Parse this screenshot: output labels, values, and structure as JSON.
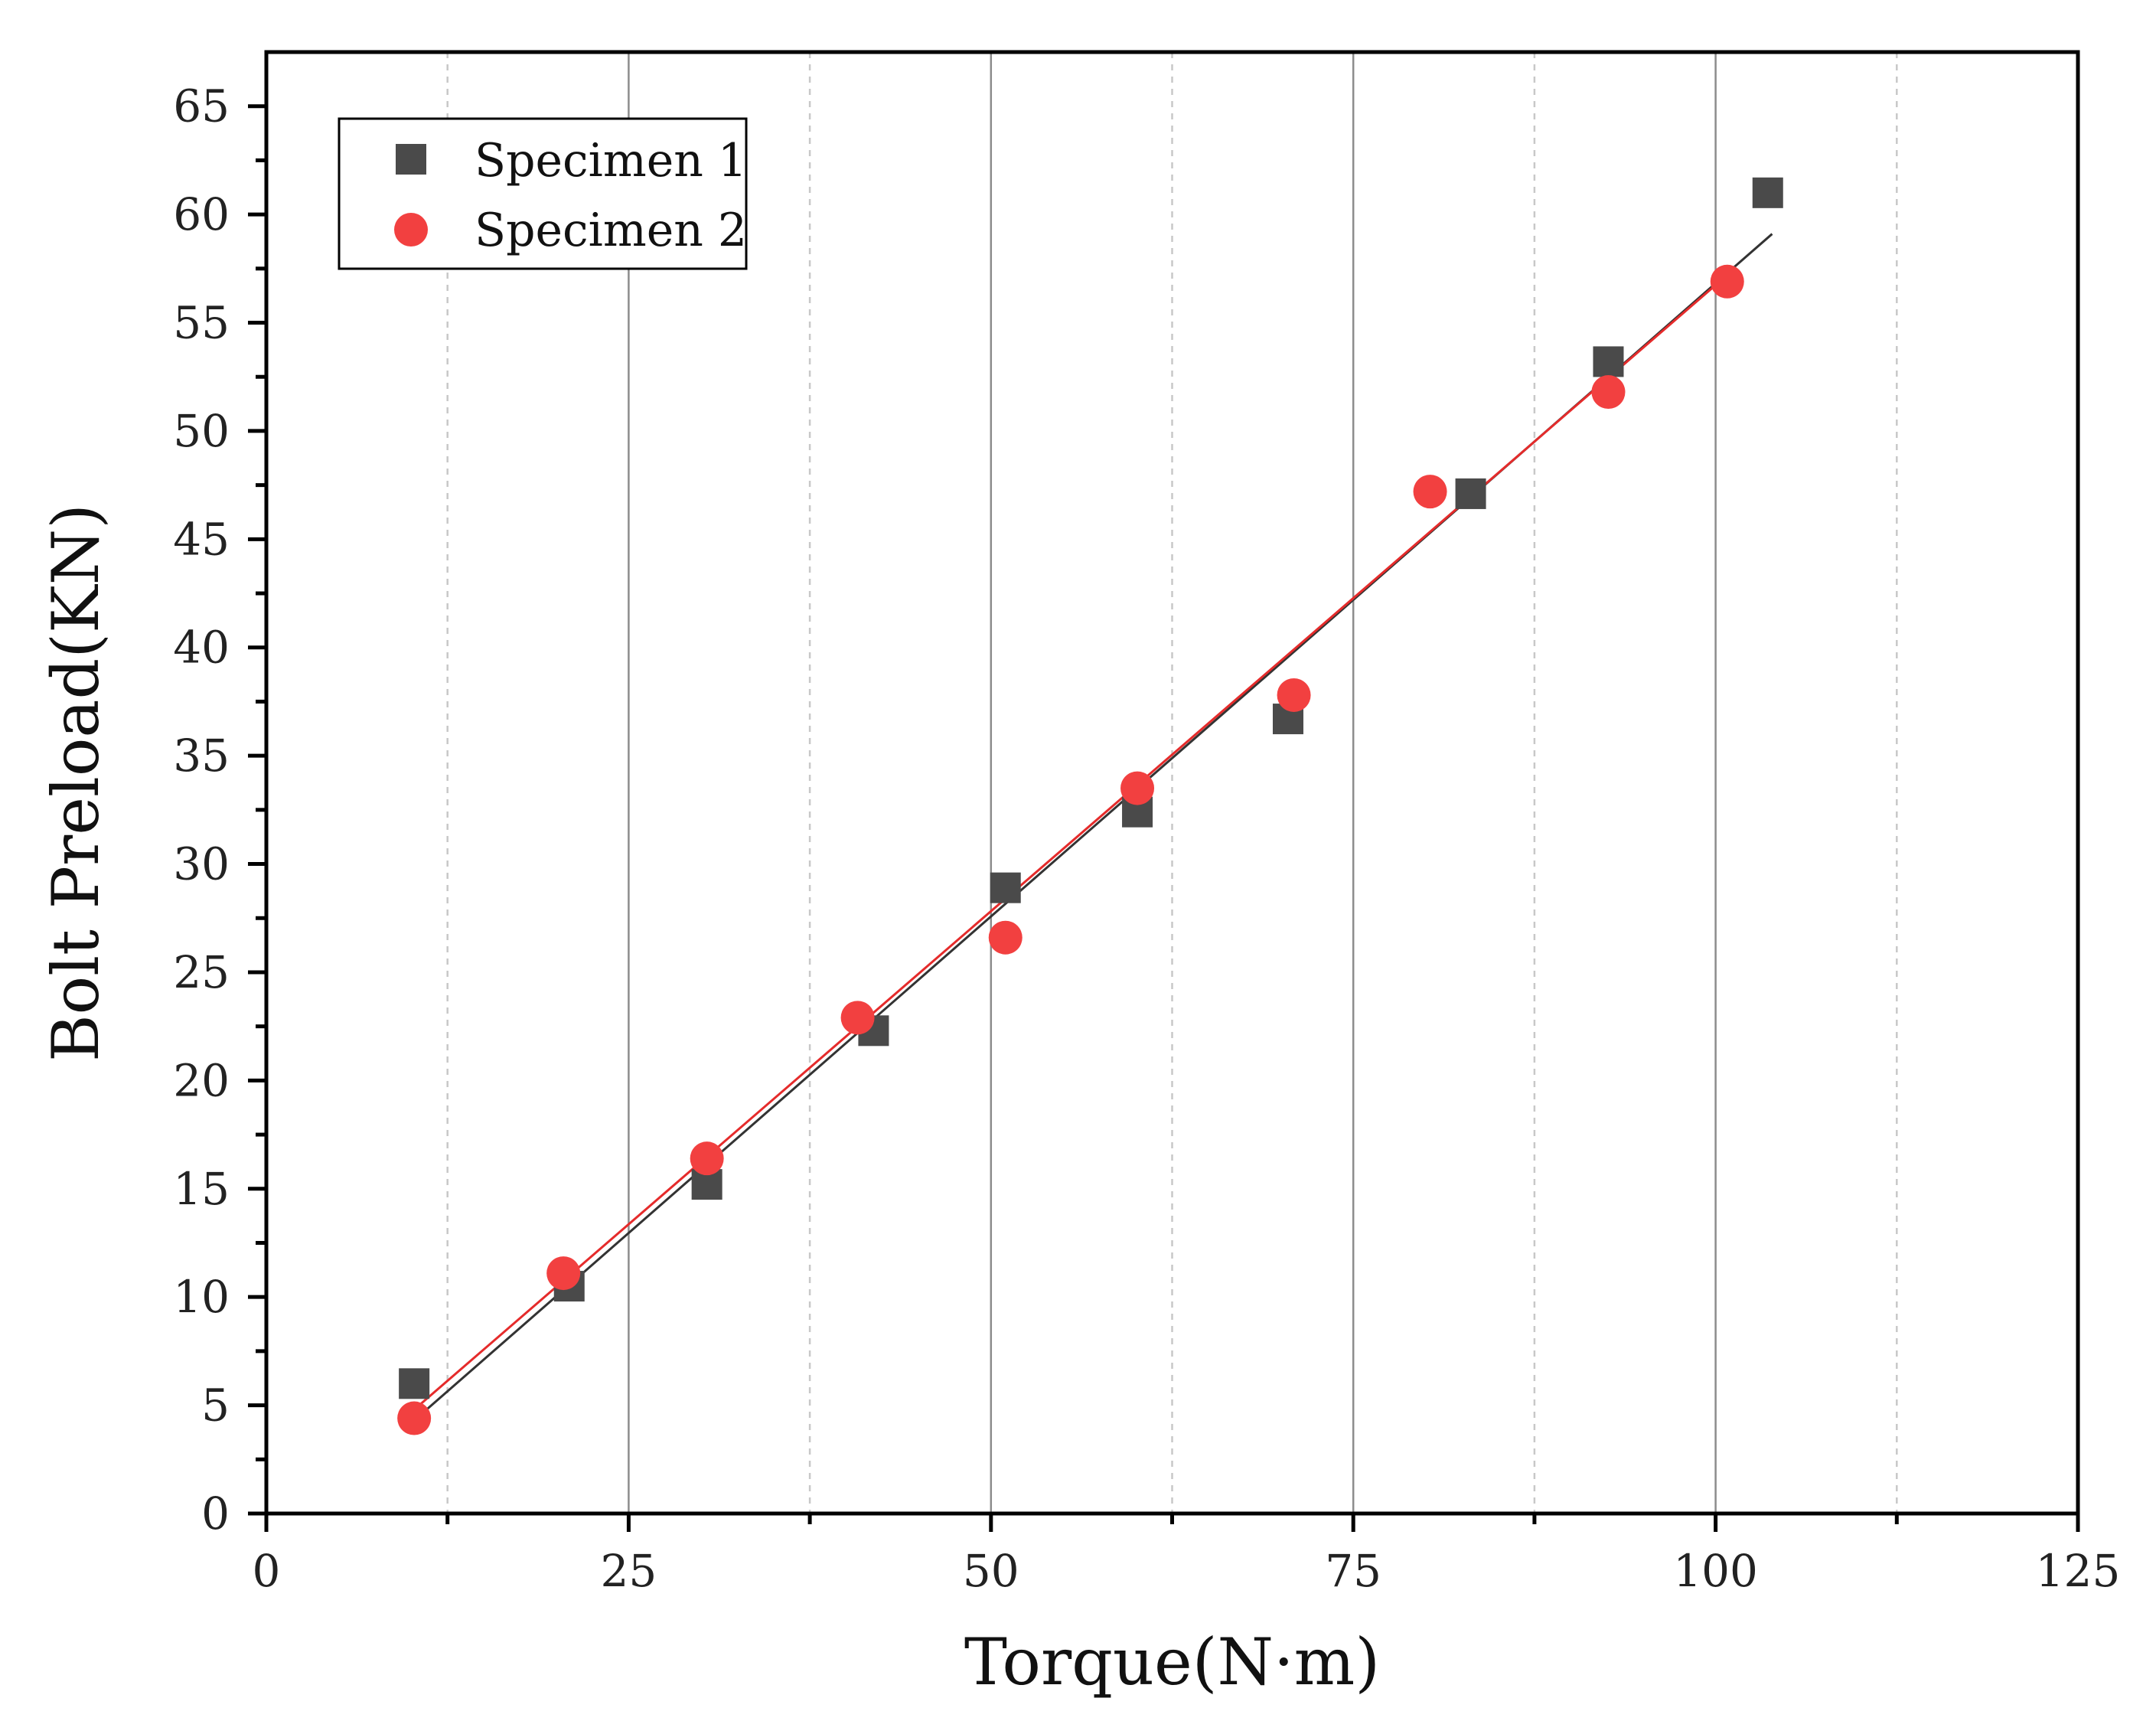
{
  "chart_data": {
    "type": "scatter",
    "title": "",
    "xlabel": "Torque(N·m)",
    "ylabel": "Bolt Preload(KN)",
    "xlim": [
      0,
      125
    ],
    "ylim": [
      0,
      67.5
    ],
    "x_ticks": [
      0,
      25,
      50,
      75,
      100,
      125
    ],
    "x_tick_labels": [
      "0",
      "25",
      "50",
      "75",
      "100",
      "125"
    ],
    "x_minor_ticks": [
      12.5,
      37.5,
      62.5,
      87.5,
      112.5
    ],
    "y_ticks": [
      0,
      5,
      10,
      15,
      20,
      25,
      30,
      35,
      40,
      45,
      50,
      55,
      60,
      65
    ],
    "y_tick_labels": [
      "0",
      "5",
      "10",
      "15",
      "20",
      "25",
      "30",
      "35",
      "40",
      "45",
      "50",
      "55",
      "60",
      "65"
    ],
    "grid": "vertical",
    "legend_position": "top-left",
    "series": [
      {
        "name": "Specimen 1",
        "marker": "square",
        "color": "#4a4a4a",
        "fit_color": "#333333",
        "x": [
          10.2,
          20.9,
          30.4,
          41.9,
          51.0,
          60.1,
          70.5,
          83.1,
          92.6,
          103.6
        ],
        "y": [
          6.0,
          10.5,
          15.2,
          22.3,
          28.9,
          32.4,
          36.7,
          47.1,
          53.2,
          61.0
        ],
        "fit": {
          "x": [
            10.2,
            103.9
          ],
          "y": [
            4.3,
            59.1
          ]
        }
      },
      {
        "name": "Specimen 2",
        "marker": "circle",
        "color": "#f24040",
        "fit_color": "#e52b2b",
        "x": [
          10.2,
          20.5,
          30.4,
          40.8,
          51.0,
          60.1,
          70.9,
          80.3,
          92.6,
          100.8
        ],
        "y": [
          4.4,
          11.1,
          16.4,
          22.9,
          26.6,
          33.5,
          37.8,
          47.2,
          51.8,
          56.9
        ],
        "fit": {
          "x": [
            10.2,
            100.8
          ],
          "y": [
            4.8,
            57.2
          ]
        }
      }
    ]
  }
}
